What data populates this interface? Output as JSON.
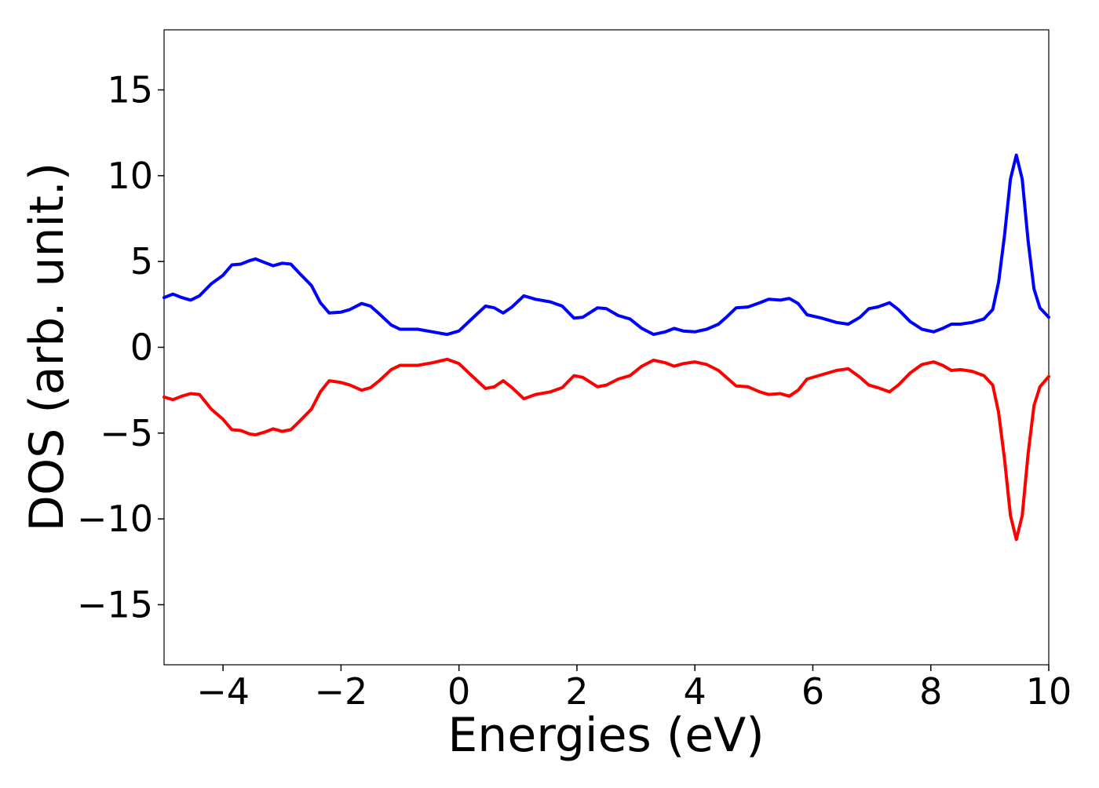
{
  "chart_data": {
    "type": "line",
    "title": "",
    "xlabel": "Energies (eV)",
    "ylabel": "DOS (arb. unit.)",
    "xlim": [
      -5,
      10
    ],
    "ylim": [
      -18.5,
      18.5
    ],
    "grid": false,
    "legend": "none",
    "xticks": [
      {
        "value": -4,
        "label": "−4"
      },
      {
        "value": -2,
        "label": "−2"
      },
      {
        "value": 0,
        "label": "0"
      },
      {
        "value": 2,
        "label": "2"
      },
      {
        "value": 4,
        "label": "4"
      },
      {
        "value": 6,
        "label": "6"
      },
      {
        "value": 8,
        "label": "8"
      },
      {
        "value": 10,
        "label": "10"
      }
    ],
    "yticks": [
      {
        "value": -15,
        "label": "−15"
      },
      {
        "value": -10,
        "label": "−10"
      },
      {
        "value": -5,
        "label": "−5"
      },
      {
        "value": 0,
        "label": "0"
      },
      {
        "value": 5,
        "label": "5"
      },
      {
        "value": 10,
        "label": "10"
      },
      {
        "value": 15,
        "label": "15"
      }
    ],
    "series": [
      {
        "color": "#0000ff",
        "points": [
          [
            -5.0,
            2.9
          ],
          [
            -4.85,
            3.1
          ],
          [
            -4.7,
            2.9
          ],
          [
            -4.55,
            2.75
          ],
          [
            -4.4,
            3.0
          ],
          [
            -4.2,
            3.7
          ],
          [
            -4.0,
            4.2
          ],
          [
            -3.85,
            4.8
          ],
          [
            -3.7,
            4.85
          ],
          [
            -3.55,
            5.05
          ],
          [
            -3.45,
            5.15
          ],
          [
            -3.3,
            4.95
          ],
          [
            -3.15,
            4.75
          ],
          [
            -3.0,
            4.9
          ],
          [
            -2.85,
            4.85
          ],
          [
            -2.7,
            4.3
          ],
          [
            -2.5,
            3.6
          ],
          [
            -2.35,
            2.6
          ],
          [
            -2.2,
            2.0
          ],
          [
            -2.0,
            2.05
          ],
          [
            -1.85,
            2.2
          ],
          [
            -1.65,
            2.55
          ],
          [
            -1.5,
            2.4
          ],
          [
            -1.35,
            1.95
          ],
          [
            -1.15,
            1.3
          ],
          [
            -1.0,
            1.05
          ],
          [
            -0.7,
            1.05
          ],
          [
            -0.45,
            0.9
          ],
          [
            -0.2,
            0.75
          ],
          [
            0.0,
            0.95
          ],
          [
            0.2,
            1.6
          ],
          [
            0.45,
            2.4
          ],
          [
            0.6,
            2.3
          ],
          [
            0.75,
            2.0
          ],
          [
            0.9,
            2.35
          ],
          [
            1.1,
            3.0
          ],
          [
            1.3,
            2.8
          ],
          [
            1.55,
            2.65
          ],
          [
            1.75,
            2.4
          ],
          [
            1.95,
            1.7
          ],
          [
            2.1,
            1.75
          ],
          [
            2.35,
            2.3
          ],
          [
            2.5,
            2.25
          ],
          [
            2.7,
            1.85
          ],
          [
            2.9,
            1.65
          ],
          [
            3.1,
            1.1
          ],
          [
            3.3,
            0.75
          ],
          [
            3.5,
            0.9
          ],
          [
            3.65,
            1.1
          ],
          [
            3.8,
            0.95
          ],
          [
            4.0,
            0.9
          ],
          [
            4.2,
            1.05
          ],
          [
            4.4,
            1.35
          ],
          [
            4.55,
            1.8
          ],
          [
            4.7,
            2.3
          ],
          [
            4.9,
            2.35
          ],
          [
            5.1,
            2.6
          ],
          [
            5.25,
            2.8
          ],
          [
            5.45,
            2.75
          ],
          [
            5.6,
            2.85
          ],
          [
            5.75,
            2.55
          ],
          [
            5.9,
            1.9
          ],
          [
            6.15,
            1.7
          ],
          [
            6.4,
            1.45
          ],
          [
            6.6,
            1.35
          ],
          [
            6.8,
            1.75
          ],
          [
            6.95,
            2.25
          ],
          [
            7.1,
            2.35
          ],
          [
            7.3,
            2.6
          ],
          [
            7.45,
            2.2
          ],
          [
            7.65,
            1.5
          ],
          [
            7.85,
            1.05
          ],
          [
            8.05,
            0.9
          ],
          [
            8.2,
            1.1
          ],
          [
            8.35,
            1.35
          ],
          [
            8.5,
            1.35
          ],
          [
            8.7,
            1.45
          ],
          [
            8.9,
            1.65
          ],
          [
            9.05,
            2.2
          ],
          [
            9.15,
            3.8
          ],
          [
            9.25,
            6.5
          ],
          [
            9.35,
            9.8
          ],
          [
            9.45,
            11.2
          ],
          [
            9.55,
            9.8
          ],
          [
            9.65,
            6.2
          ],
          [
            9.75,
            3.4
          ],
          [
            9.85,
            2.3
          ],
          [
            10.0,
            1.75
          ]
        ]
      },
      {
        "color": "#ff0000",
        "points": [
          [
            -5.0,
            -2.9
          ],
          [
            -4.85,
            -3.05
          ],
          [
            -4.7,
            -2.85
          ],
          [
            -4.55,
            -2.7
          ],
          [
            -4.4,
            -2.75
          ],
          [
            -4.2,
            -3.6
          ],
          [
            -4.0,
            -4.2
          ],
          [
            -3.85,
            -4.8
          ],
          [
            -3.7,
            -4.85
          ],
          [
            -3.55,
            -5.05
          ],
          [
            -3.45,
            -5.1
          ],
          [
            -3.3,
            -4.95
          ],
          [
            -3.15,
            -4.75
          ],
          [
            -3.0,
            -4.9
          ],
          [
            -2.85,
            -4.8
          ],
          [
            -2.7,
            -4.3
          ],
          [
            -2.5,
            -3.6
          ],
          [
            -2.35,
            -2.6
          ],
          [
            -2.2,
            -1.95
          ],
          [
            -2.0,
            -2.05
          ],
          [
            -1.85,
            -2.2
          ],
          [
            -1.65,
            -2.5
          ],
          [
            -1.5,
            -2.35
          ],
          [
            -1.35,
            -1.95
          ],
          [
            -1.15,
            -1.3
          ],
          [
            -1.0,
            -1.05
          ],
          [
            -0.7,
            -1.05
          ],
          [
            -0.45,
            -0.9
          ],
          [
            -0.2,
            -0.7
          ],
          [
            0.0,
            -0.95
          ],
          [
            0.2,
            -1.6
          ],
          [
            0.45,
            -2.4
          ],
          [
            0.6,
            -2.3
          ],
          [
            0.75,
            -1.95
          ],
          [
            0.9,
            -2.35
          ],
          [
            1.1,
            -3.0
          ],
          [
            1.3,
            -2.75
          ],
          [
            1.55,
            -2.6
          ],
          [
            1.75,
            -2.35
          ],
          [
            1.95,
            -1.65
          ],
          [
            2.1,
            -1.75
          ],
          [
            2.35,
            -2.3
          ],
          [
            2.5,
            -2.2
          ],
          [
            2.7,
            -1.85
          ],
          [
            2.9,
            -1.65
          ],
          [
            3.1,
            -1.1
          ],
          [
            3.3,
            -0.75
          ],
          [
            3.5,
            -0.9
          ],
          [
            3.65,
            -1.1
          ],
          [
            3.8,
            -0.95
          ],
          [
            4.0,
            -0.85
          ],
          [
            4.2,
            -1.0
          ],
          [
            4.4,
            -1.35
          ],
          [
            4.55,
            -1.8
          ],
          [
            4.7,
            -2.25
          ],
          [
            4.9,
            -2.3
          ],
          [
            5.1,
            -2.6
          ],
          [
            5.25,
            -2.75
          ],
          [
            5.45,
            -2.7
          ],
          [
            5.6,
            -2.85
          ],
          [
            5.75,
            -2.5
          ],
          [
            5.9,
            -1.85
          ],
          [
            6.15,
            -1.6
          ],
          [
            6.4,
            -1.35
          ],
          [
            6.6,
            -1.25
          ],
          [
            6.8,
            -1.75
          ],
          [
            6.95,
            -2.2
          ],
          [
            7.1,
            -2.35
          ],
          [
            7.3,
            -2.6
          ],
          [
            7.45,
            -2.2
          ],
          [
            7.65,
            -1.5
          ],
          [
            7.85,
            -1.0
          ],
          [
            8.05,
            -0.85
          ],
          [
            8.2,
            -1.05
          ],
          [
            8.35,
            -1.35
          ],
          [
            8.5,
            -1.3
          ],
          [
            8.7,
            -1.4
          ],
          [
            8.9,
            -1.65
          ],
          [
            9.05,
            -2.2
          ],
          [
            9.15,
            -3.8
          ],
          [
            9.25,
            -6.5
          ],
          [
            9.35,
            -9.8
          ],
          [
            9.45,
            -11.2
          ],
          [
            9.55,
            -9.8
          ],
          [
            9.65,
            -6.2
          ],
          [
            9.75,
            -3.4
          ],
          [
            9.85,
            -2.3
          ],
          [
            10.0,
            -1.7
          ]
        ]
      }
    ]
  }
}
